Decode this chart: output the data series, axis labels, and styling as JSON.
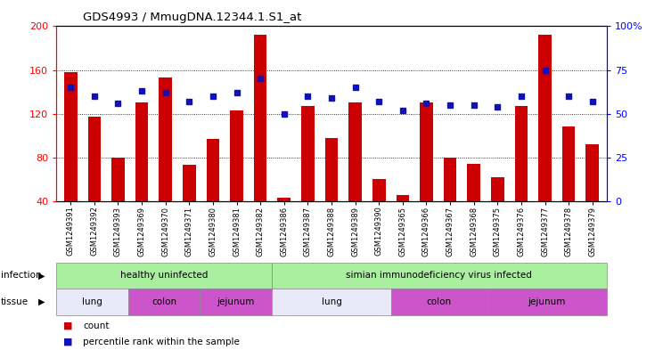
{
  "title": "GDS4993 / MmugDNA.12344.1.S1_at",
  "samples": [
    "GSM1249391",
    "GSM1249392",
    "GSM1249393",
    "GSM1249369",
    "GSM1249370",
    "GSM1249371",
    "GSM1249380",
    "GSM1249381",
    "GSM1249382",
    "GSM1249386",
    "GSM1249387",
    "GSM1249388",
    "GSM1249389",
    "GSM1249390",
    "GSM1249365",
    "GSM1249366",
    "GSM1249367",
    "GSM1249368",
    "GSM1249375",
    "GSM1249376",
    "GSM1249377",
    "GSM1249378",
    "GSM1249379"
  ],
  "counts": [
    158,
    117,
    80,
    130,
    153,
    73,
    97,
    123,
    192,
    43,
    127,
    98,
    130,
    60,
    46,
    130,
    80,
    74,
    62,
    127,
    192,
    108,
    92
  ],
  "percentiles": [
    65,
    60,
    56,
    63,
    62,
    57,
    60,
    62,
    70,
    50,
    60,
    59,
    65,
    57,
    52,
    56,
    55,
    55,
    54,
    60,
    75,
    60,
    57
  ],
  "ylim_left": [
    40,
    200
  ],
  "ylim_right": [
    0,
    100
  ],
  "yticks_left": [
    40,
    80,
    120,
    160,
    200
  ],
  "yticks_right": [
    0,
    25,
    50,
    75,
    100
  ],
  "bar_color": "#cc0000",
  "dot_color": "#1111bb",
  "bar_bottom": 40,
  "tissue_data": [
    {
      "label": "lung",
      "start": 0,
      "end": 3,
      "color": "#e8e8f8"
    },
    {
      "label": "colon",
      "start": 3,
      "end": 6,
      "color": "#cc55cc"
    },
    {
      "label": "jejunum",
      "start": 6,
      "end": 9,
      "color": "#cc55cc"
    },
    {
      "label": "lung",
      "start": 9,
      "end": 14,
      "color": "#e8e8f8"
    },
    {
      "label": "colon",
      "start": 14,
      "end": 18,
      "color": "#cc55cc"
    },
    {
      "label": "jejunum",
      "start": 18,
      "end": 23,
      "color": "#cc55cc"
    }
  ],
  "infection_data": [
    {
      "label": "healthy uninfected",
      "start": 0,
      "end": 9,
      "color": "#aaeea0"
    },
    {
      "label": "simian immunodeficiency virus infected",
      "start": 9,
      "end": 23,
      "color": "#aaeea0"
    }
  ],
  "background_color": "#ffffff"
}
